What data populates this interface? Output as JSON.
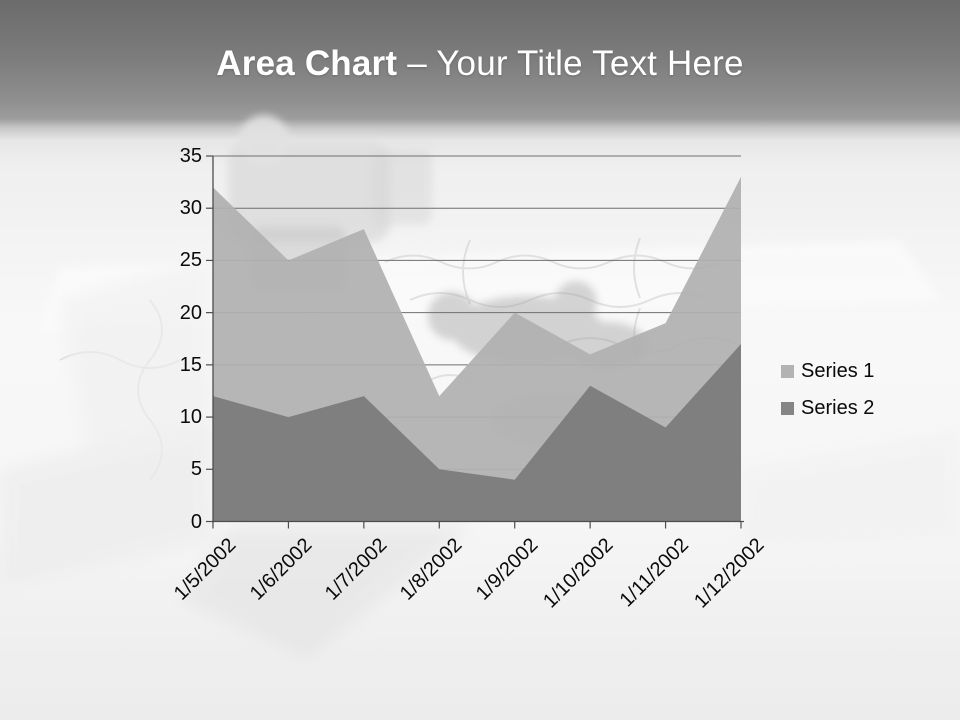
{
  "slide": {
    "title": {
      "bold": "Area Chart",
      "rest": "– Your Title Text Here"
    },
    "background_image": "puzzle-pieces-3d-photo"
  },
  "chart_data": {
    "type": "area",
    "overlap": true,
    "categories": [
      "1/5/2002",
      "1/6/2002",
      "1/7/2002",
      "1/8/2002",
      "1/9/2002",
      "1/10/2002",
      "1/11/2002",
      "1/12/2002"
    ],
    "series": [
      {
        "name": "Series 1",
        "color": "#b3b3b3",
        "values": [
          32,
          25,
          28,
          12,
          20,
          16,
          19,
          33
        ]
      },
      {
        "name": "Series 2",
        "color": "#858585",
        "values": [
          12,
          10,
          12,
          5,
          4,
          13,
          9,
          17
        ]
      }
    ],
    "y_ticks": [
      "35",
      "30",
      "25",
      "20",
      "15",
      "10",
      "5",
      "0"
    ],
    "ylim": [
      0,
      35
    ],
    "y_tick_step": 5,
    "grid": true,
    "legend_position": "right",
    "axis_color": "#4d4d4d",
    "gridline_color": "#6f6f6f"
  }
}
